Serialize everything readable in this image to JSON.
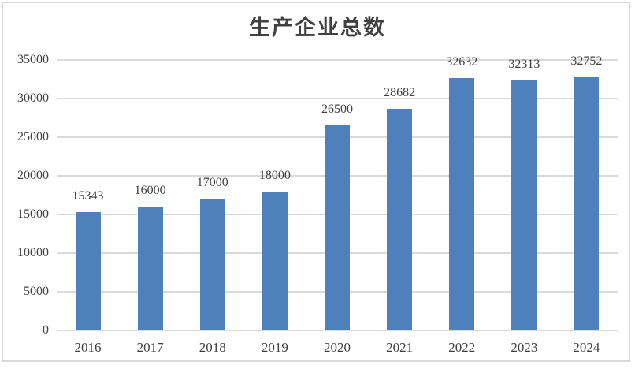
{
  "chart_data": {
    "type": "bar",
    "title": "生产企业总数",
    "categories": [
      "2016",
      "2017",
      "2018",
      "2019",
      "2020",
      "2021",
      "2022",
      "2023",
      "2024"
    ],
    "values": [
      15343,
      16000,
      17000,
      18000,
      26500,
      28682,
      32632,
      32313,
      32752
    ],
    "data_labels": [
      "15343",
      "16000",
      "17000",
      "18000",
      "26500",
      "28682",
      "32632",
      "32313",
      "32752"
    ],
    "ylim": [
      0,
      35000
    ],
    "ytick_step": 5000,
    "ytick_labels": [
      "0",
      "5000",
      "10000",
      "15000",
      "20000",
      "25000",
      "30000",
      "35000"
    ],
    "xlabel": "",
    "ylabel": "",
    "grid": "horizontal",
    "legend": false,
    "colors": {
      "bar": "#4E81BC",
      "gridline": "#D9D9D9",
      "axis_line": "#D9D9D9",
      "text": "#404040",
      "border": "#D9D9D9",
      "background": "#FFFFFF"
    }
  }
}
